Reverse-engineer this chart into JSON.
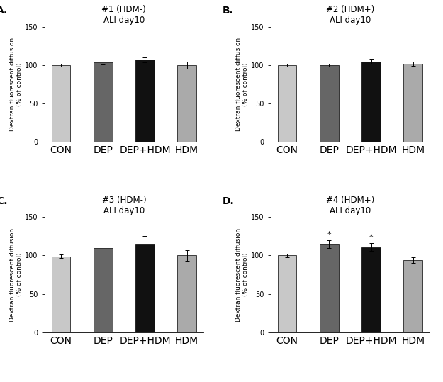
{
  "panels": [
    {
      "label": "A.",
      "title": "#1 (HDM-)\nALI day10",
      "categories": [
        "CON",
        "DEP",
        "DEP+HDM",
        "HDM"
      ],
      "values": [
        100,
        104,
        107,
        100
      ],
      "errors": [
        2,
        3,
        3,
        5
      ],
      "colors": [
        "#c8c8c8",
        "#666666",
        "#111111",
        "#aaaaaa"
      ],
      "ylim": [
        0,
        150
      ],
      "yticks": [
        0,
        50,
        100,
        150
      ],
      "asterisks": [
        false,
        false,
        false,
        false
      ]
    },
    {
      "label": "B.",
      "title": "#2 (HDM+)\nALI day10",
      "categories": [
        "CON",
        "DEP",
        "DEP+HDM",
        "HDM"
      ],
      "values": [
        100,
        100,
        105,
        102
      ],
      "errors": [
        2,
        2,
        3,
        3
      ],
      "colors": [
        "#c8c8c8",
        "#666666",
        "#111111",
        "#aaaaaa"
      ],
      "ylim": [
        0,
        150
      ],
      "yticks": [
        0,
        50,
        100,
        150
      ],
      "asterisks": [
        false,
        false,
        false,
        false
      ]
    },
    {
      "label": "C.",
      "title": "#3 (HDM-)\nALI day10",
      "categories": [
        "CON",
        "DEP",
        "DEP+HDM",
        "HDM"
      ],
      "values": [
        99,
        110,
        115,
        100
      ],
      "errors": [
        2,
        8,
        10,
        7
      ],
      "colors": [
        "#c8c8c8",
        "#666666",
        "#111111",
        "#aaaaaa"
      ],
      "ylim": [
        0,
        150
      ],
      "yticks": [
        0,
        50,
        100,
        150
      ],
      "asterisks": [
        false,
        false,
        false,
        false
      ]
    },
    {
      "label": "D.",
      "title": "#4 (HDM+)\nALI day10",
      "categories": [
        "CON",
        "DEP",
        "DEP+HDM",
        "HDM"
      ],
      "values": [
        100,
        115,
        111,
        94
      ],
      "errors": [
        2,
        5,
        5,
        4
      ],
      "colors": [
        "#c8c8c8",
        "#666666",
        "#111111",
        "#aaaaaa"
      ],
      "ylim": [
        0,
        150
      ],
      "yticks": [
        0,
        50,
        100,
        150
      ],
      "asterisks": [
        false,
        true,
        true,
        false
      ]
    }
  ],
  "ylabel": "Dextran fluorescent diffusion\n(% of control)",
  "background_color": "#ffffff",
  "bar_width": 0.45,
  "title_fontsize": 8.5,
  "label_fontsize": 10,
  "tick_fontsize": 7,
  "ylabel_fontsize": 6.5,
  "asterisk_fontsize": 8
}
